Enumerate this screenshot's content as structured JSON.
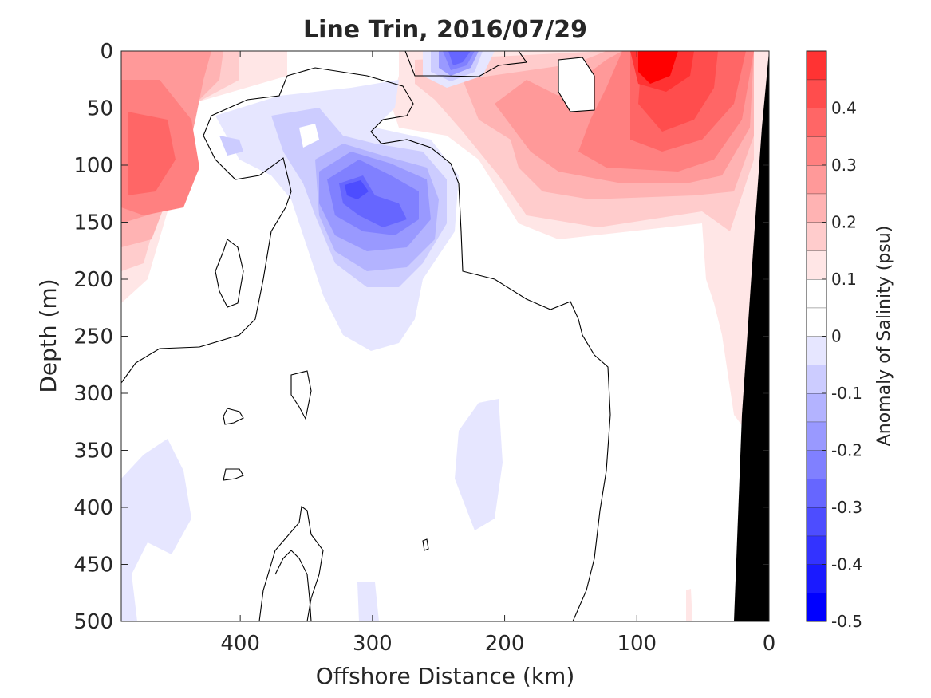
{
  "chart_data": {
    "type": "heatmap",
    "title": "Line Trin, 2016/07/29",
    "xlabel": "Offshore Distance (km)",
    "ylabel": "Depth (m)",
    "xlim": [
      490,
      0
    ],
    "ylim": [
      0,
      500
    ],
    "y_reversed": true,
    "x_reversed": true,
    "xticks": [
      400,
      300,
      200,
      100,
      0
    ],
    "yticks": [
      0,
      50,
      100,
      150,
      200,
      250,
      300,
      350,
      400,
      450,
      500
    ],
    "colorbar": {
      "label": "Anomaly of Salinity (psu)",
      "clim": [
        -0.5,
        0.5
      ],
      "ticks": [
        0.4,
        0.3,
        0.2,
        0.1,
        0,
        -0.1,
        -0.2,
        -0.3,
        -0.4,
        -0.5
      ],
      "tick_labels": [
        "0.4",
        "0.3",
        "0.2",
        "0.1",
        "0",
        "-0.1",
        "-0.2",
        "-0.3",
        "-0.4",
        "-0.5"
      ],
      "levels": [
        -0.5,
        -0.45,
        -0.4,
        -0.35,
        -0.3,
        -0.25,
        -0.2,
        -0.15,
        -0.1,
        -0.05,
        0,
        0.05,
        0.1,
        0.15,
        0.2,
        0.25,
        0.3,
        0.35,
        0.4,
        0.45,
        0.5
      ],
      "colors": [
        "#0000ff",
        "#1a1aff",
        "#3333ff",
        "#4d4dff",
        "#6666ff",
        "#8080ff",
        "#9999ff",
        "#b3b3ff",
        "#ccccff",
        "#e6e6ff",
        "#ffffff",
        "#ffffff",
        "#ffe6e6",
        "#ffcccc",
        "#ffb3b3",
        "#ff9999",
        "#ff8080",
        "#ff6666",
        "#ff4d4d",
        "#ff3333",
        "#ff0000"
      ]
    },
    "features": [
      {
        "name": "high-salinity-surface-nearshore",
        "x": 85,
        "y": 15,
        "value": 0.48
      },
      {
        "name": "high-salinity-subsurface-nearshore",
        "x": 80,
        "y": 100,
        "value": 0.38
      },
      {
        "name": "high-salinity-offshore-west",
        "x": 465,
        "y": 100,
        "value": 0.28
      },
      {
        "name": "high-salinity-offshore-west-2",
        "x": 440,
        "y": 120,
        "value": 0.25
      },
      {
        "name": "low-salinity-core",
        "x": 310,
        "y": 120,
        "value": -0.32
      },
      {
        "name": "low-salinity-core-2",
        "x": 290,
        "y": 140,
        "value": -0.3
      },
      {
        "name": "low-salinity-surface",
        "x": 235,
        "y": 10,
        "value": -0.33
      },
      {
        "name": "low-salinity-deep-west",
        "x": 450,
        "y": 380,
        "value": -0.08
      },
      {
        "name": "low-salinity-deep-mid",
        "x": 215,
        "y": 360,
        "value": -0.08
      }
    ],
    "bathymetry": {
      "name": "seafloor",
      "color": "#000000"
    }
  }
}
